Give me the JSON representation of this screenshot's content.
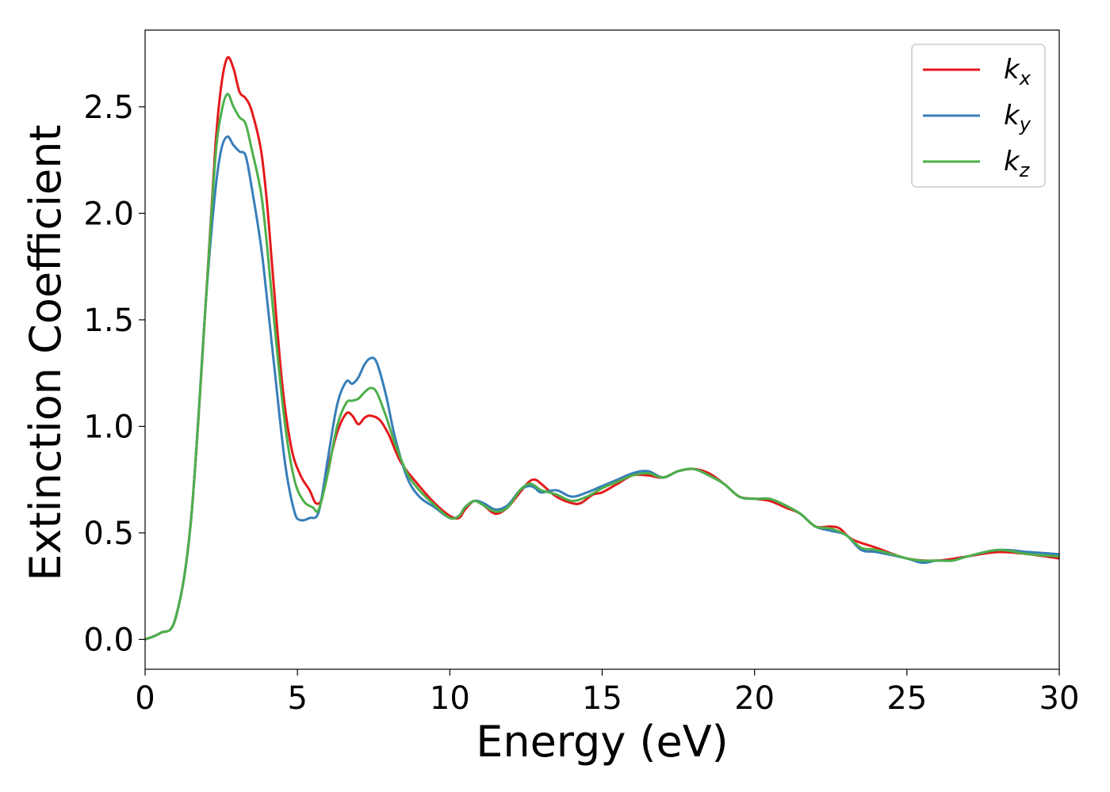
{
  "chart_data": {
    "type": "line",
    "xlabel": "Energy (eV)",
    "ylabel": "Extinction Coefficient",
    "xlim": [
      0,
      30
    ],
    "ylim": [
      -0.14,
      2.86
    ],
    "xticks": [
      0,
      5,
      10,
      15,
      20,
      25,
      30
    ],
    "xtick_labels": [
      "0",
      "5",
      "10",
      "15",
      "20",
      "25",
      "30"
    ],
    "yticks": [
      0.0,
      0.5,
      1.0,
      1.5,
      2.0,
      2.5
    ],
    "ytick_labels": [
      "0.0",
      "0.5",
      "1.0",
      "1.5",
      "2.0",
      "2.5"
    ],
    "grid": false,
    "legend_position": "top-right",
    "series": [
      {
        "name": "k",
        "subscript": "x",
        "color": "#e41a1c",
        "points": [
          [
            0,
            0
          ],
          [
            0.5,
            0.03
          ],
          [
            1.0,
            0.1
          ],
          [
            1.5,
            0.55
          ],
          [
            2.0,
            1.6
          ],
          [
            2.3,
            2.3
          ],
          [
            2.5,
            2.6
          ],
          [
            2.7,
            2.73
          ],
          [
            2.9,
            2.68
          ],
          [
            3.1,
            2.57
          ],
          [
            3.3,
            2.54
          ],
          [
            3.5,
            2.48
          ],
          [
            3.8,
            2.3
          ],
          [
            4.0,
            2.05
          ],
          [
            4.2,
            1.7
          ],
          [
            4.5,
            1.2
          ],
          [
            4.8,
            0.9
          ],
          [
            5.1,
            0.77
          ],
          [
            5.4,
            0.7
          ],
          [
            5.6,
            0.64
          ],
          [
            5.8,
            0.66
          ],
          [
            6.0,
            0.8
          ],
          [
            6.3,
            0.97
          ],
          [
            6.6,
            1.06
          ],
          [
            6.8,
            1.05
          ],
          [
            7.0,
            1.01
          ],
          [
            7.2,
            1.04
          ],
          [
            7.4,
            1.05
          ],
          [
            7.7,
            1.03
          ],
          [
            8.0,
            0.96
          ],
          [
            8.4,
            0.83
          ],
          [
            9.0,
            0.72
          ],
          [
            9.5,
            0.64
          ],
          [
            10.0,
            0.58
          ],
          [
            10.3,
            0.57
          ],
          [
            10.5,
            0.61
          ],
          [
            10.8,
            0.65
          ],
          [
            11.1,
            0.63
          ],
          [
            11.5,
            0.59
          ],
          [
            11.9,
            0.62
          ],
          [
            12.3,
            0.69
          ],
          [
            12.6,
            0.74
          ],
          [
            12.8,
            0.75
          ],
          [
            13.0,
            0.73
          ],
          [
            13.5,
            0.67
          ],
          [
            14.0,
            0.64
          ],
          [
            14.3,
            0.64
          ],
          [
            14.7,
            0.68
          ],
          [
            15.0,
            0.69
          ],
          [
            15.5,
            0.73
          ],
          [
            16.0,
            0.77
          ],
          [
            16.5,
            0.77
          ],
          [
            17.0,
            0.76
          ],
          [
            17.5,
            0.79
          ],
          [
            18.0,
            0.8
          ],
          [
            18.5,
            0.78
          ],
          [
            19.0,
            0.73
          ],
          [
            19.5,
            0.67
          ],
          [
            20.0,
            0.66
          ],
          [
            20.5,
            0.65
          ],
          [
            21.0,
            0.62
          ],
          [
            21.5,
            0.59
          ],
          [
            22.0,
            0.53
          ],
          [
            22.5,
            0.53
          ],
          [
            22.8,
            0.52
          ],
          [
            23.2,
            0.47
          ],
          [
            24.0,
            0.43
          ],
          [
            25.0,
            0.38
          ],
          [
            26.0,
            0.37
          ],
          [
            27.0,
            0.39
          ],
          [
            28.0,
            0.41
          ],
          [
            29.0,
            0.4
          ],
          [
            30.0,
            0.38
          ]
        ]
      },
      {
        "name": "k",
        "subscript": "y",
        "color": "#377eb8",
        "points": [
          [
            0,
            0
          ],
          [
            0.5,
            0.03
          ],
          [
            1.0,
            0.1
          ],
          [
            1.5,
            0.55
          ],
          [
            2.0,
            1.6
          ],
          [
            2.3,
            2.1
          ],
          [
            2.5,
            2.3
          ],
          [
            2.7,
            2.36
          ],
          [
            2.9,
            2.32
          ],
          [
            3.1,
            2.29
          ],
          [
            3.3,
            2.27
          ],
          [
            3.5,
            2.12
          ],
          [
            3.8,
            1.85
          ],
          [
            4.0,
            1.6
          ],
          [
            4.3,
            1.2
          ],
          [
            4.6,
            0.82
          ],
          [
            4.9,
            0.6
          ],
          [
            5.1,
            0.56
          ],
          [
            5.4,
            0.57
          ],
          [
            5.7,
            0.6
          ],
          [
            6.0,
            0.85
          ],
          [
            6.3,
            1.1
          ],
          [
            6.6,
            1.21
          ],
          [
            6.8,
            1.2
          ],
          [
            7.0,
            1.23
          ],
          [
            7.2,
            1.29
          ],
          [
            7.4,
            1.32
          ],
          [
            7.6,
            1.3
          ],
          [
            7.9,
            1.15
          ],
          [
            8.2,
            0.95
          ],
          [
            8.6,
            0.76
          ],
          [
            9.0,
            0.67
          ],
          [
            9.5,
            0.62
          ],
          [
            10.0,
            0.57
          ],
          [
            10.3,
            0.58
          ],
          [
            10.5,
            0.62
          ],
          [
            10.8,
            0.65
          ],
          [
            11.1,
            0.64
          ],
          [
            11.5,
            0.61
          ],
          [
            11.9,
            0.63
          ],
          [
            12.3,
            0.7
          ],
          [
            12.6,
            0.72
          ],
          [
            12.8,
            0.71
          ],
          [
            13.0,
            0.69
          ],
          [
            13.5,
            0.7
          ],
          [
            14.0,
            0.67
          ],
          [
            14.5,
            0.69
          ],
          [
            15.0,
            0.72
          ],
          [
            15.5,
            0.75
          ],
          [
            16.0,
            0.78
          ],
          [
            16.5,
            0.79
          ],
          [
            17.0,
            0.76
          ],
          [
            17.5,
            0.79
          ],
          [
            18.0,
            0.8
          ],
          [
            18.5,
            0.77
          ],
          [
            19.0,
            0.73
          ],
          [
            19.5,
            0.67
          ],
          [
            20.0,
            0.66
          ],
          [
            20.5,
            0.66
          ],
          [
            21.0,
            0.63
          ],
          [
            21.5,
            0.59
          ],
          [
            22.0,
            0.53
          ],
          [
            22.5,
            0.51
          ],
          [
            23.0,
            0.49
          ],
          [
            23.5,
            0.42
          ],
          [
            24.0,
            0.41
          ],
          [
            25.0,
            0.38
          ],
          [
            25.5,
            0.36
          ],
          [
            26.0,
            0.37
          ],
          [
            26.5,
            0.37
          ],
          [
            27.0,
            0.39
          ],
          [
            28.0,
            0.42
          ],
          [
            29.0,
            0.41
          ],
          [
            30.0,
            0.4
          ]
        ]
      },
      {
        "name": "k",
        "subscript": "z",
        "color": "#4daf4a",
        "points": [
          [
            0,
            0
          ],
          [
            0.5,
            0.03
          ],
          [
            1.0,
            0.1
          ],
          [
            1.5,
            0.55
          ],
          [
            2.0,
            1.6
          ],
          [
            2.3,
            2.25
          ],
          [
            2.5,
            2.47
          ],
          [
            2.7,
            2.56
          ],
          [
            2.9,
            2.5
          ],
          [
            3.1,
            2.45
          ],
          [
            3.3,
            2.42
          ],
          [
            3.5,
            2.3
          ],
          [
            3.8,
            2.1
          ],
          [
            4.0,
            1.85
          ],
          [
            4.3,
            1.4
          ],
          [
            4.6,
            1.0
          ],
          [
            4.9,
            0.75
          ],
          [
            5.2,
            0.65
          ],
          [
            5.5,
            0.62
          ],
          [
            5.7,
            0.61
          ],
          [
            6.0,
            0.78
          ],
          [
            6.3,
            1.0
          ],
          [
            6.6,
            1.11
          ],
          [
            6.8,
            1.12
          ],
          [
            7.0,
            1.13
          ],
          [
            7.2,
            1.16
          ],
          [
            7.4,
            1.18
          ],
          [
            7.6,
            1.16
          ],
          [
            7.9,
            1.05
          ],
          [
            8.2,
            0.92
          ],
          [
            8.6,
            0.78
          ],
          [
            9.0,
            0.7
          ],
          [
            9.5,
            0.63
          ],
          [
            10.0,
            0.57
          ],
          [
            10.3,
            0.58
          ],
          [
            10.5,
            0.62
          ],
          [
            10.8,
            0.65
          ],
          [
            11.1,
            0.63
          ],
          [
            11.5,
            0.6
          ],
          [
            11.9,
            0.62
          ],
          [
            12.3,
            0.7
          ],
          [
            12.6,
            0.73
          ],
          [
            12.8,
            0.72
          ],
          [
            13.0,
            0.7
          ],
          [
            13.5,
            0.68
          ],
          [
            14.0,
            0.65
          ],
          [
            14.5,
            0.67
          ],
          [
            15.0,
            0.71
          ],
          [
            15.5,
            0.74
          ],
          [
            16.0,
            0.77
          ],
          [
            16.5,
            0.78
          ],
          [
            17.0,
            0.76
          ],
          [
            17.5,
            0.79
          ],
          [
            18.0,
            0.8
          ],
          [
            18.5,
            0.77
          ],
          [
            19.0,
            0.73
          ],
          [
            19.5,
            0.67
          ],
          [
            20.0,
            0.66
          ],
          [
            20.5,
            0.66
          ],
          [
            21.0,
            0.63
          ],
          [
            21.5,
            0.59
          ],
          [
            22.0,
            0.53
          ],
          [
            22.5,
            0.52
          ],
          [
            23.0,
            0.49
          ],
          [
            23.5,
            0.43
          ],
          [
            24.0,
            0.42
          ],
          [
            25.0,
            0.38
          ],
          [
            25.5,
            0.37
          ],
          [
            26.0,
            0.37
          ],
          [
            26.5,
            0.37
          ],
          [
            27.0,
            0.39
          ],
          [
            28.0,
            0.42
          ],
          [
            29.0,
            0.4
          ],
          [
            30.0,
            0.39
          ]
        ]
      }
    ]
  }
}
